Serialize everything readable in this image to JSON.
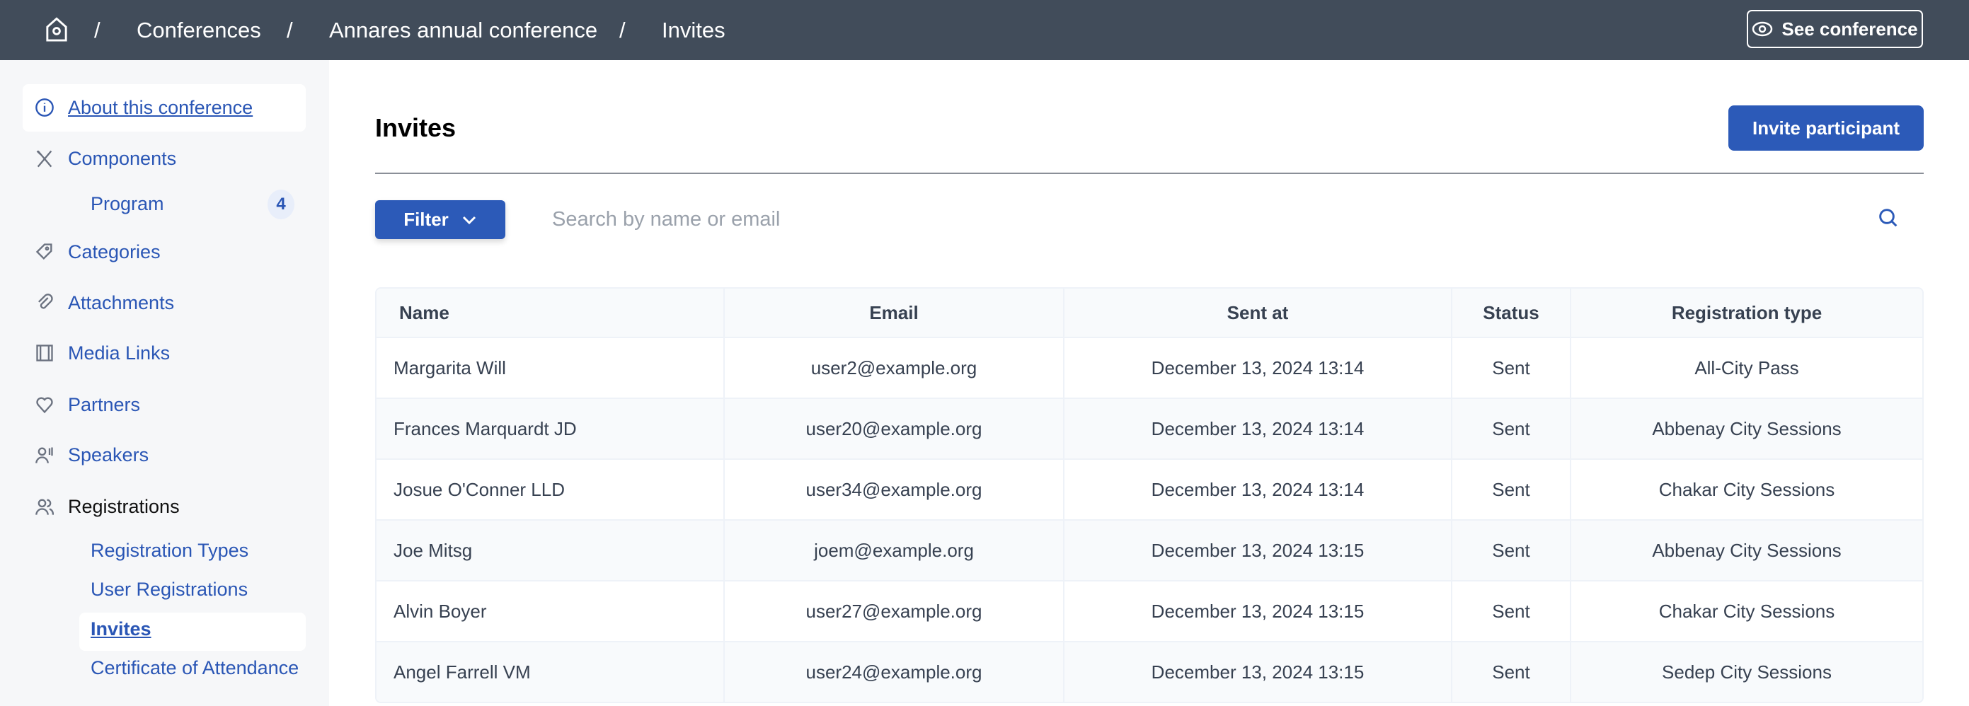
{
  "topbar": {
    "home_icon": "home-gear-icon",
    "breadcrumb": [
      "Conferences",
      "Annares annual conference",
      "Invites"
    ],
    "separator": "/",
    "see_conference": "See conference"
  },
  "sidebar": {
    "items": [
      {
        "label": "About this conference",
        "icon": "info-icon"
      },
      {
        "label": "Components",
        "icon": "tools-icon"
      },
      {
        "label": "Program",
        "badge": "4"
      },
      {
        "label": "Categories",
        "icon": "tag-icon"
      },
      {
        "label": "Attachments",
        "icon": "paperclip-icon"
      },
      {
        "label": "Media Links",
        "icon": "film-icon"
      },
      {
        "label": "Partners",
        "icon": "handshake-heart-icon"
      },
      {
        "label": "Speakers",
        "icon": "speaker-icon"
      },
      {
        "label": "Registrations",
        "icon": "users-icon"
      },
      {
        "label": "Registration Types"
      },
      {
        "label": "User Registrations"
      },
      {
        "label": "Invites"
      },
      {
        "label": "Certificate of Attendance"
      }
    ]
  },
  "main": {
    "title": "Invites",
    "invite_button": "Invite participant",
    "filter_button": "Filter",
    "search_placeholder": "Search by name or email",
    "table": {
      "headers": [
        "Name",
        "Email",
        "Sent at",
        "Status",
        "Registration type"
      ],
      "rows": [
        [
          "Margarita Will",
          "user2@example.org",
          "December 13, 2024 13:14",
          "Sent",
          "All-City Pass"
        ],
        [
          "Frances Marquardt JD",
          "user20@example.org",
          "December 13, 2024 13:14",
          "Sent",
          "Abbenay City Sessions"
        ],
        [
          "Josue O'Conner LLD",
          "user34@example.org",
          "December 13, 2024 13:14",
          "Sent",
          "Chakar City Sessions"
        ],
        [
          "Joe Mitsg",
          "joem@example.org",
          "December 13, 2024 13:15",
          "Sent",
          "Abbenay City Sessions"
        ],
        [
          "Alvin Boyer",
          "user27@example.org",
          "December 13, 2024 13:15",
          "Sent",
          "Chakar City Sessions"
        ],
        [
          "Angel Farrell VM",
          "user24@example.org",
          "December 13, 2024 13:15",
          "Sent",
          "Sedep City Sessions"
        ]
      ]
    }
  },
  "colors": {
    "topbar": "#414c5a",
    "primary": "#2c5ab8",
    "link": "#2a56b5",
    "sidebar_bg": "#f6f7f9"
  }
}
